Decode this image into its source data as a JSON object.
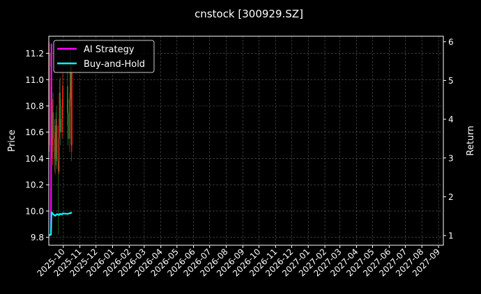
{
  "chart_data": {
    "type": "candlestick+line",
    "title": "cnstock [300929.SZ]",
    "ylabel_left": "Price",
    "ylabel_right": "Return",
    "xlim": [
      "2025-09-04",
      "2027-09-10"
    ],
    "ylim_left": [
      9.74,
      11.33
    ],
    "ylim_right": [
      0.75,
      6.14
    ],
    "grid": true,
    "legend_placement": "top-left",
    "x_ticks": [
      "2025-10",
      "2025-11",
      "2025-12",
      "2026-01",
      "2026-02",
      "2026-03",
      "2026-04",
      "2026-05",
      "2026-06",
      "2026-07",
      "2026-08",
      "2026-09",
      "2026-10",
      "2026-11",
      "2026-12",
      "2027-01",
      "2027-02",
      "2027-03",
      "2027-04",
      "2027-05",
      "2027-06",
      "2027-07",
      "2027-08",
      "2027-09"
    ],
    "y_ticks_left": [
      "9.8",
      "10.0",
      "10.2",
      "10.4",
      "10.6",
      "10.8",
      "11.0",
      "11.2"
    ],
    "y_ticks_right": [
      "1",
      "2",
      "3",
      "4",
      "5",
      "6"
    ],
    "colors": {
      "background": "#000000",
      "up": "#ff1a1a",
      "down": "#2e8b2e",
      "strategy": "#ff00ff",
      "buy_hold": "#00ffff",
      "grid": "#555555"
    },
    "candles": [
      [
        "2025-09-05",
        10.5,
        11.28,
        10.45,
        11.2
      ],
      [
        "2025-09-08",
        11.2,
        11.25,
        10.95,
        11.1
      ],
      [
        "2025-09-09",
        11.1,
        11.15,
        10.7,
        10.8
      ],
      [
        "2025-09-10",
        10.8,
        10.95,
        10.4,
        10.5
      ],
      [
        "2025-09-11",
        10.5,
        10.85,
        10.35,
        10.75
      ],
      [
        "2025-09-12",
        10.75,
        10.9,
        10.45,
        10.55
      ],
      [
        "2025-09-15",
        10.55,
        10.7,
        10.3,
        10.4
      ],
      [
        "2025-09-16",
        10.4,
        10.65,
        10.28,
        10.6
      ],
      [
        "2025-09-17",
        10.6,
        10.75,
        10.35,
        10.45
      ],
      [
        "2025-09-18",
        10.45,
        10.7,
        10.4,
        10.65
      ],
      [
        "2025-09-19",
        10.65,
        10.8,
        10.32,
        10.38
      ],
      [
        "2025-09-22",
        10.38,
        10.55,
        9.82,
        10.3
      ],
      [
        "2025-09-23",
        10.3,
        10.7,
        10.28,
        10.65
      ],
      [
        "2025-09-24",
        10.65,
        11.0,
        10.55,
        10.9
      ],
      [
        "2025-09-25",
        10.9,
        11.02,
        10.6,
        10.7
      ],
      [
        "2025-09-26",
        10.7,
        10.85,
        10.5,
        10.6
      ],
      [
        "2025-09-29",
        10.6,
        10.85,
        10.55,
        10.8
      ],
      [
        "2025-09-30",
        10.8,
        11.05,
        10.7,
        10.95
      ],
      [
        "2025-10-09",
        10.95,
        11.1,
        10.65,
        10.75
      ],
      [
        "2025-10-10",
        10.75,
        10.85,
        10.5,
        10.55
      ],
      [
        "2025-10-13",
        10.55,
        10.9,
        10.45,
        10.85
      ],
      [
        "2025-10-14",
        10.85,
        11.2,
        10.8,
        11.1
      ],
      [
        "2025-10-15",
        11.1,
        11.25,
        10.85,
        10.95
      ],
      [
        "2025-10-16",
        10.95,
        11.1,
        10.38,
        10.5
      ],
      [
        "2025-10-17",
        10.5,
        11.15,
        10.45,
        11.05
      ]
    ],
    "series": [
      {
        "name": "AI Strategy",
        "x": [
          "2025-09-05",
          "2025-09-08",
          "2025-09-09"
        ],
        "values": [
          1.0,
          1.02,
          5.95
        ]
      },
      {
        "name": "Buy-and-Hold",
        "x": [
          "2025-09-05",
          "2025-09-08",
          "2025-09-09",
          "2025-09-10",
          "2025-09-11",
          "2025-09-12",
          "2025-09-15",
          "2025-09-16",
          "2025-09-17",
          "2025-09-18",
          "2025-09-19",
          "2025-09-22",
          "2025-09-23",
          "2025-09-24",
          "2025-09-25",
          "2025-09-26",
          "2025-09-29",
          "2025-09-30",
          "2025-10-09",
          "2025-10-10",
          "2025-10-13",
          "2025-10-14",
          "2025-10-15",
          "2025-10-16",
          "2025-10-17"
        ],
        "values": [
          1.02,
          1.02,
          1.6,
          1.59,
          1.57,
          1.55,
          1.52,
          1.51,
          1.52,
          1.54,
          1.55,
          1.54,
          1.53,
          1.55,
          1.56,
          1.55,
          1.55,
          1.57,
          1.56,
          1.56,
          1.58,
          1.57,
          1.58,
          1.59,
          1.58
        ]
      }
    ]
  }
}
